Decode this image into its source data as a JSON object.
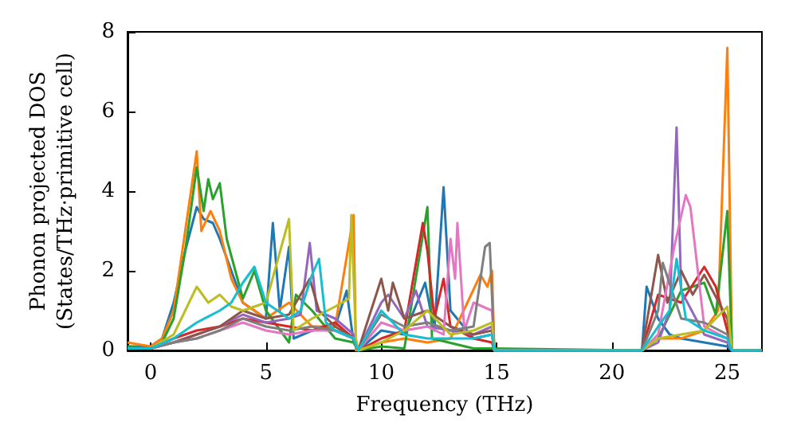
{
  "chart_data": {
    "type": "line",
    "xlabel": "Frequency (THz)",
    "ylabel": "Phonon projected DOS\n(States/THz·primitive cell)",
    "xlim": [
      -1,
      26.5
    ],
    "ylim": [
      0,
      8
    ],
    "xticks": [
      0,
      5,
      10,
      15,
      20,
      25
    ],
    "yticks": [
      0,
      2,
      4,
      6,
      8
    ],
    "grid": false,
    "marker": "none",
    "line_style": "solid",
    "series": [
      {
        "color": "#1f77b4",
        "x": [
          -1,
          0,
          0.5,
          1,
          1.5,
          2,
          2.3,
          2.7,
          3,
          3.5,
          4,
          4.5,
          5,
          5.3,
          5.6,
          6,
          6.2,
          7,
          8,
          8.5,
          8.8,
          9,
          10,
          11,
          11.9,
          12.3,
          12.7,
          13,
          14,
          14.8,
          14.9,
          21.3,
          21.5,
          22,
          22.5,
          23,
          24,
          25,
          25.2,
          26.5
        ],
        "values": [
          0.1,
          0.1,
          0.3,
          1.2,
          2.5,
          3.6,
          3.3,
          3.2,
          2.8,
          2.0,
          1.2,
          1.0,
          0.8,
          3.2,
          1.0,
          2.6,
          0.3,
          0.5,
          0.6,
          1.5,
          0.2,
          0,
          0.5,
          0.4,
          1.7,
          0.5,
          4.1,
          1.0,
          0.3,
          0.4,
          0,
          0,
          1.6,
          0.8,
          0.4,
          0.3,
          0.2,
          0.1,
          0,
          0
        ]
      },
      {
        "color": "#ff7f0e",
        "x": [
          -1,
          0,
          0.5,
          1,
          1.5,
          2,
          2.2,
          2.6,
          3,
          3.5,
          4,
          5,
          6,
          7,
          8,
          8.8,
          8.9,
          10,
          11,
          12,
          13,
          14.3,
          14.6,
          14.8,
          14.9,
          21.3,
          22,
          23,
          24,
          24.6,
          25,
          25.2,
          26.5
        ],
        "values": [
          0.2,
          0.1,
          0.3,
          1.0,
          3.0,
          5.0,
          3.0,
          3.5,
          3.0,
          1.8,
          1.2,
          0.8,
          1.2,
          0.6,
          0.6,
          3.4,
          0,
          0.2,
          0.3,
          0.2,
          0.3,
          1.9,
          1.6,
          2.0,
          0,
          0,
          0.3,
          0.3,
          0.5,
          1.0,
          7.6,
          0,
          0
        ]
      },
      {
        "color": "#2ca02c",
        "x": [
          -1,
          0,
          0.5,
          1,
          1.5,
          2,
          2.3,
          2.5,
          2.7,
          3,
          3.3,
          4,
          4.5,
          5,
          6,
          6.3,
          7,
          8,
          8.8,
          9,
          10,
          11,
          12,
          12.2,
          14,
          14.8,
          21.3,
          22,
          23,
          24,
          24.5,
          25,
          25.2,
          26.5
        ],
        "values": [
          0.1,
          0.05,
          0.2,
          0.8,
          2.5,
          4.6,
          3.5,
          4.3,
          3.8,
          4.2,
          2.8,
          1.3,
          2.0,
          1.0,
          0.2,
          1.4,
          1.0,
          0.3,
          0.2,
          0,
          0.1,
          0.05,
          3.6,
          0.3,
          0.05,
          0.05,
          0,
          0.3,
          1.5,
          1.7,
          0.9,
          3.5,
          0,
          0
        ]
      },
      {
        "color": "#d62728",
        "x": [
          -1,
          0,
          1,
          2,
          3,
          4,
          5,
          6,
          7,
          8,
          8.8,
          9,
          10,
          11,
          11.8,
          12,
          12.3,
          12.7,
          13,
          14,
          14.8,
          14.9,
          21.3,
          22,
          23,
          24,
          24.5,
          25,
          25.2,
          26.5
        ],
        "values": [
          0.05,
          0.05,
          0.3,
          0.5,
          0.6,
          0.8,
          0.7,
          0.6,
          0.5,
          0.7,
          0.3,
          0,
          0.3,
          0.5,
          3.2,
          2.5,
          0.8,
          1.8,
          0.6,
          0.3,
          0.2,
          0,
          0,
          1.4,
          1.2,
          2.1,
          1.6,
          0.5,
          0,
          0
        ]
      },
      {
        "color": "#9467bd",
        "x": [
          -1,
          0,
          1,
          2,
          3,
          4,
          5,
          6,
          6.5,
          6.9,
          7.2,
          8,
          8.8,
          9,
          10,
          10.3,
          11,
          11.5,
          12,
          13,
          14,
          14.8,
          14.9,
          21.3,
          22,
          22.5,
          22.8,
          23,
          24,
          25,
          25.2,
          26.5
        ],
        "values": [
          0.05,
          0.05,
          0.2,
          0.4,
          0.6,
          0.9,
          0.7,
          0.8,
          0.9,
          2.7,
          1.0,
          0.8,
          0.4,
          0,
          1.2,
          1.4,
          0.8,
          1.5,
          0.6,
          0.5,
          0.4,
          0.6,
          0,
          0,
          0.2,
          1.0,
          5.6,
          1.5,
          0.4,
          0.2,
          0,
          0
        ]
      },
      {
        "color": "#8c564b",
        "x": [
          -1,
          0,
          1,
          2,
          3,
          4,
          5,
          6,
          6.9,
          7.3,
          8,
          8.8,
          9,
          10,
          10.3,
          10.5,
          11,
          11.5,
          12,
          13,
          14,
          14.8,
          14.9,
          21.3,
          22,
          22.4,
          23,
          23.5,
          24,
          25,
          25.2,
          26.5
        ],
        "values": [
          0.05,
          0.05,
          0.2,
          0.4,
          0.6,
          1.0,
          0.8,
          0.9,
          1.8,
          1.0,
          0.6,
          0.3,
          0,
          1.8,
          1.0,
          1.7,
          0.8,
          0.9,
          1.0,
          0.6,
          0.4,
          0.5,
          0,
          0,
          2.4,
          1.2,
          2.0,
          1.4,
          1.9,
          0.8,
          0,
          0
        ]
      },
      {
        "color": "#e377c2",
        "x": [
          -1,
          0,
          1,
          2,
          3,
          4,
          5,
          6,
          7,
          8,
          8.8,
          9,
          10,
          11,
          12,
          12.7,
          13,
          13.2,
          13.3,
          13.6,
          14,
          14.8,
          14.9,
          21.3,
          22,
          22.7,
          23.2,
          23.4,
          24,
          25,
          25.2,
          26.5
        ],
        "values": [
          0.05,
          0.05,
          0.2,
          0.3,
          0.5,
          0.7,
          0.5,
          0.4,
          0.5,
          0.5,
          0.3,
          0,
          0.7,
          0.5,
          0.6,
          0.4,
          2.8,
          1.8,
          3.2,
          0.5,
          1.2,
          1.0,
          0,
          0,
          0.4,
          2.6,
          3.9,
          3.6,
          0.6,
          0.3,
          0,
          0
        ]
      },
      {
        "color": "#7f7f7f",
        "x": [
          -1,
          0,
          1,
          2,
          3,
          4,
          5,
          6,
          7,
          8,
          8.8,
          9,
          10,
          11,
          12,
          13,
          14,
          14.5,
          14.7,
          14.9,
          21.3,
          22,
          22.2,
          23,
          24,
          25,
          25.2,
          26.5
        ],
        "values": [
          0.05,
          0.05,
          0.2,
          0.3,
          0.5,
          0.8,
          0.6,
          0.5,
          0.6,
          0.5,
          0.3,
          0,
          0.9,
          0.6,
          0.7,
          0.5,
          0.6,
          2.6,
          2.7,
          0,
          0,
          1.0,
          2.2,
          0.8,
          0.7,
          0.4,
          0,
          0
        ]
      },
      {
        "color": "#bcbd22",
        "x": [
          -1,
          0,
          1,
          1.5,
          2,
          2.5,
          3,
          3.5,
          4,
          5,
          6,
          6.2,
          7,
          8,
          8.6,
          8.7,
          8.9,
          9,
          10,
          11,
          12,
          13,
          14,
          14.8,
          14.9,
          21.3,
          22,
          23,
          24,
          25,
          25.2,
          26.5
        ],
        "values": [
          0.05,
          0.05,
          0.4,
          1.0,
          1.6,
          1.2,
          1.4,
          1.1,
          1.0,
          1.2,
          3.3,
          0.5,
          0.8,
          1.1,
          1.3,
          3.4,
          0.3,
          0,
          0.2,
          0.5,
          1.0,
          0.4,
          0.5,
          0.7,
          0,
          0,
          0.3,
          0.4,
          0.5,
          1.1,
          0,
          0
        ]
      },
      {
        "color": "#17becf",
        "x": [
          -1,
          0,
          1,
          2,
          3,
          3.5,
          4,
          4.5,
          5,
          6,
          6.5,
          7,
          7.3,
          7.6,
          8,
          8.8,
          9,
          10,
          11,
          12,
          13,
          14,
          14.8,
          14.9,
          21.3,
          22,
          22.5,
          22.8,
          23.2,
          24,
          25,
          25.2,
          26.5
        ],
        "values": [
          0.05,
          0.05,
          0.3,
          0.7,
          1.0,
          1.2,
          1.7,
          2.1,
          1.2,
          0.8,
          1.0,
          1.9,
          2.3,
          0.7,
          0.5,
          0.3,
          0,
          1.0,
          0.4,
          0.3,
          0.3,
          0.3,
          0.4,
          0,
          0,
          0.6,
          1.0,
          2.3,
          0.8,
          0.5,
          0.3,
          0,
          0
        ]
      }
    ]
  }
}
